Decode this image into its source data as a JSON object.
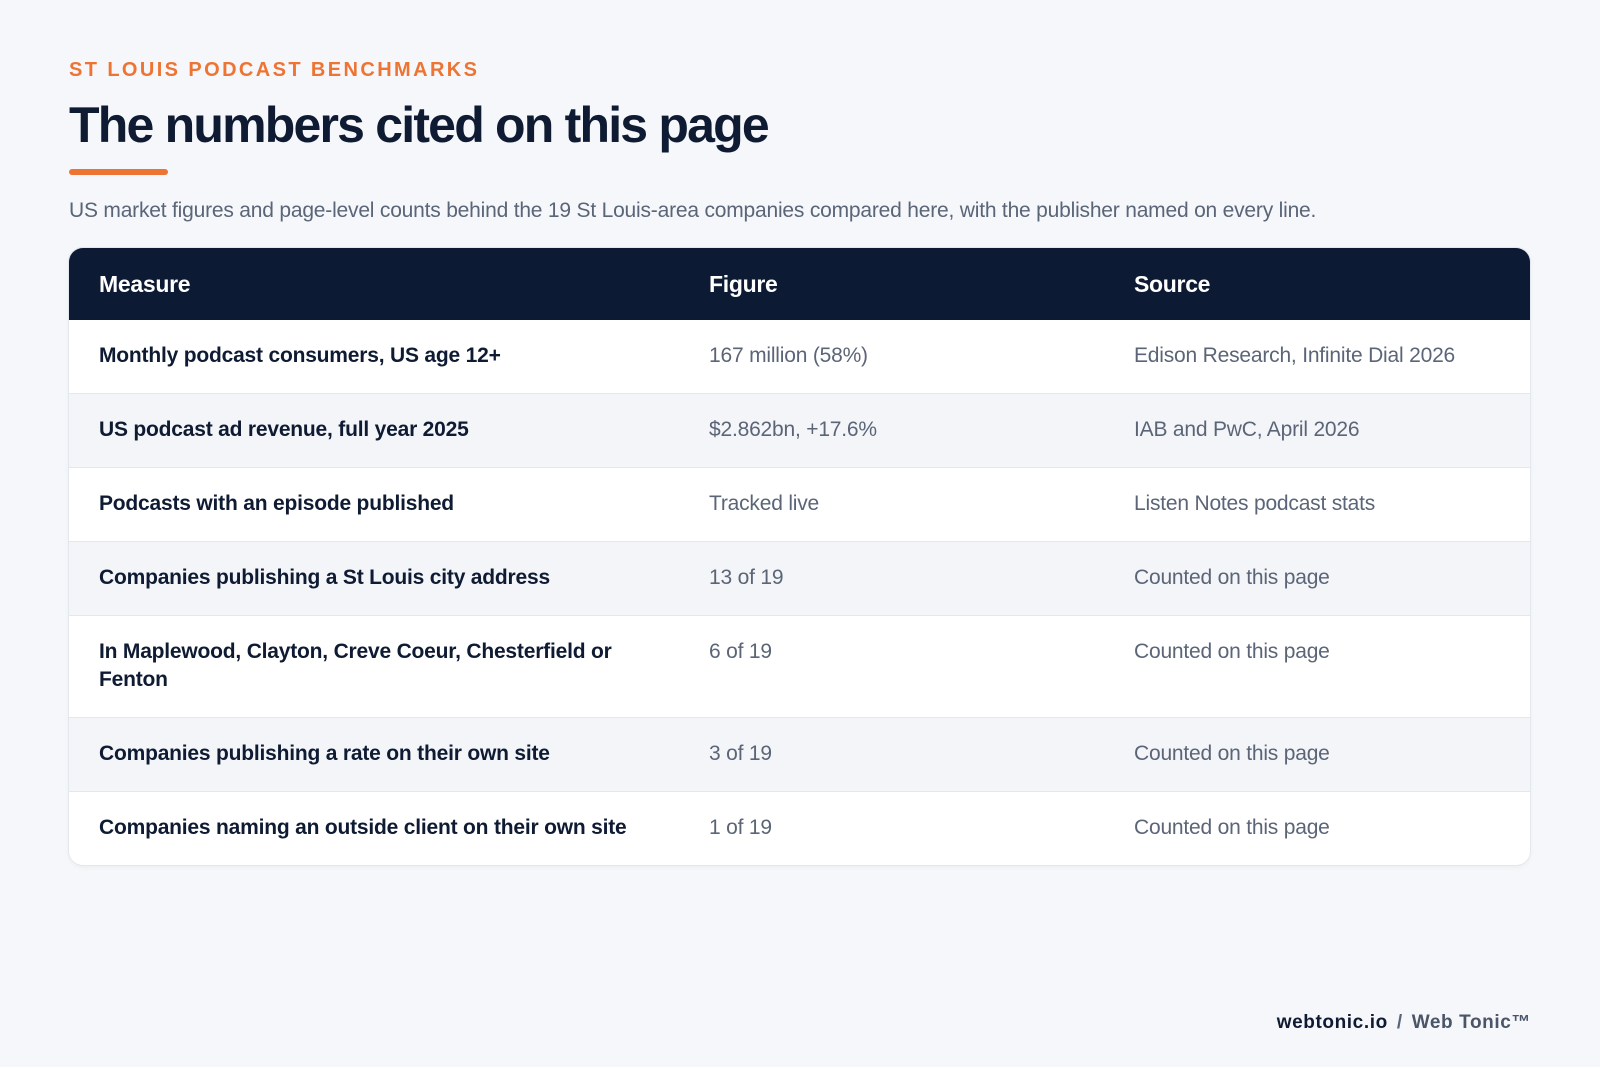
{
  "header": {
    "eyebrow": "ST LOUIS PODCAST BENCHMARKS",
    "title": "The numbers cited on this page",
    "subtitle": "US market figures and page-level counts behind the 19 St Louis-area companies compared here, with the publisher named on every line."
  },
  "table": {
    "columns": [
      "Measure",
      "Figure",
      "Source"
    ],
    "rows": [
      {
        "measure": "Monthly podcast consumers, US age 12+",
        "figure": "167 million (58%)",
        "source": "Edison Research, Infinite Dial 2026"
      },
      {
        "measure": "US podcast ad revenue, full year 2025",
        "figure": "$2.862bn, +17.6%",
        "source": "IAB and PwC, April 2026"
      },
      {
        "measure": "Podcasts with an episode published",
        "figure": "Tracked live",
        "source": "Listen Notes podcast stats"
      },
      {
        "measure": "Companies publishing a St Louis city address",
        "figure": "13 of 19",
        "source": "Counted on this page"
      },
      {
        "measure": "In Maplewood, Clayton, Creve Coeur, Chesterfield or Fenton",
        "figure": "6 of 19",
        "source": "Counted on this page"
      },
      {
        "measure": "Companies publishing a rate on their own site",
        "figure": "3 of 19",
        "source": "Counted on this page"
      },
      {
        "measure": "Companies naming an outside client on their own site",
        "figure": "1 of 19",
        "source": "Counted on this page"
      }
    ]
  },
  "footer": {
    "domain": "webtonic.io",
    "separator": "/",
    "brand": "Web Tonic™"
  },
  "colors": {
    "accent": "#ee7433",
    "header_bg": "#0d1a33",
    "page_bg": "#f5f7fa",
    "text_dark": "#0f1b33",
    "text_muted": "#5b6577"
  }
}
